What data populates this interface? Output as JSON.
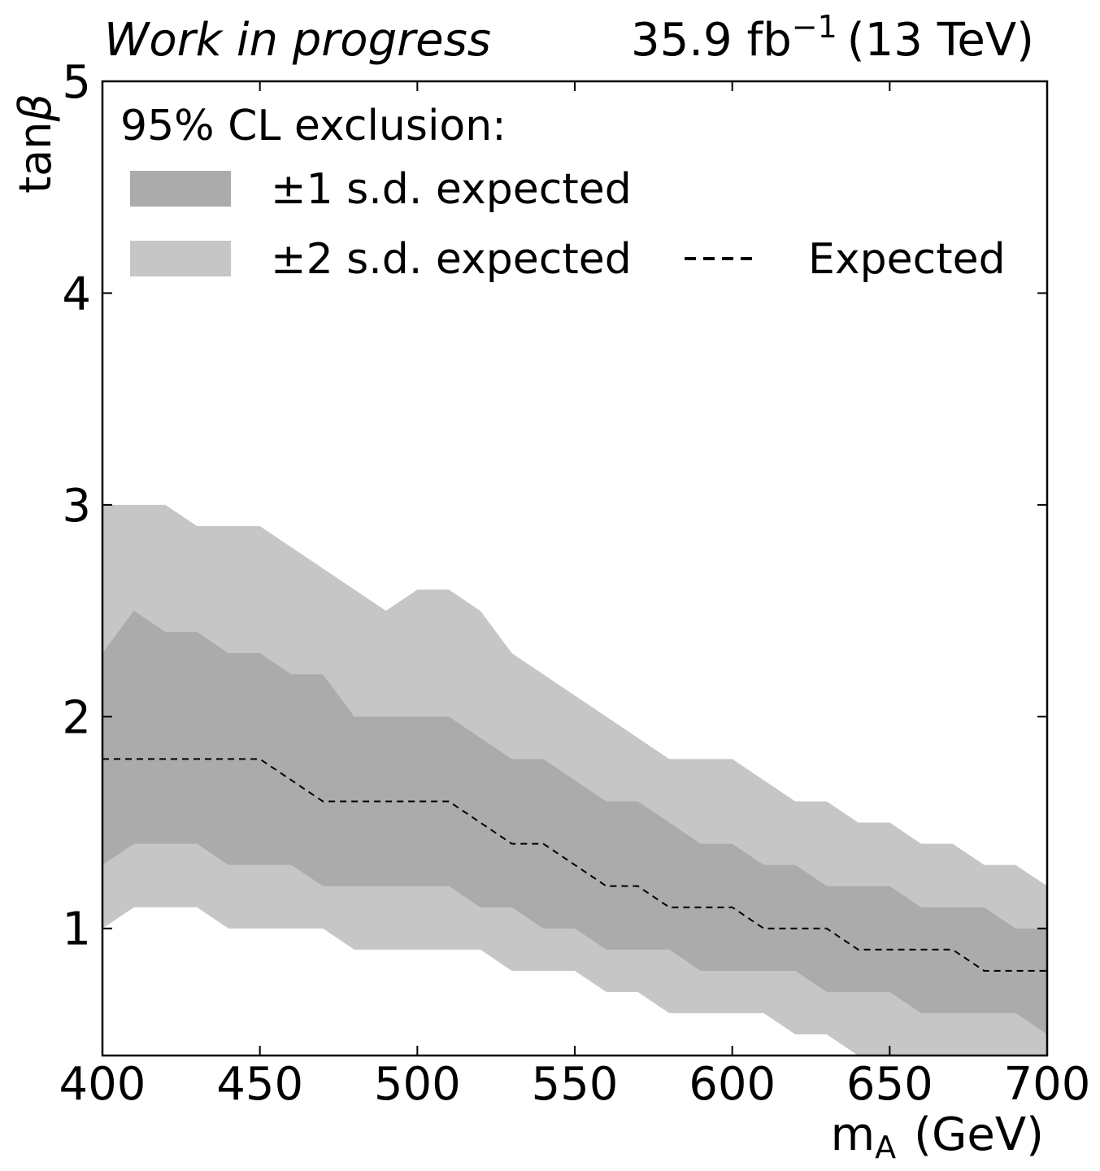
{
  "header": {
    "left": "Work in progress",
    "lumi": "35.9 fb",
    "lumi_exp": "−1",
    "energy": "(13 TeV)"
  },
  "legend": {
    "title": "95% CL exclusion:",
    "band1": "±1 s.d. expected",
    "band2": "±2 s.d. expected",
    "expected": "Expected"
  },
  "colors": {
    "band1": "#ababab",
    "band2": "#c6c6c6",
    "line": "#000000"
  },
  "chart_data": {
    "type": "area",
    "xlabel_main": "m",
    "xlabel_sub": "A",
    "xlabel_unit": "(GeV)",
    "ylabel_main": "tan",
    "ylabel_symbol": "β",
    "xlim": [
      400,
      700
    ],
    "ylim": [
      0.4,
      5
    ],
    "xticks": [
      "400",
      "450",
      "500",
      "550",
      "600",
      "650",
      "700"
    ],
    "yticks": [
      "1",
      "2",
      "3",
      "4",
      "5"
    ],
    "x": [
      400,
      410,
      420,
      430,
      440,
      450,
      460,
      470,
      480,
      490,
      500,
      510,
      520,
      530,
      540,
      550,
      560,
      570,
      580,
      590,
      600,
      610,
      620,
      630,
      640,
      650,
      660,
      670,
      680,
      690,
      700
    ],
    "expected": [
      1.8,
      1.8,
      1.8,
      1.8,
      1.8,
      1.8,
      1.7,
      1.6,
      1.6,
      1.6,
      1.6,
      1.6,
      1.5,
      1.4,
      1.4,
      1.3,
      1.2,
      1.2,
      1.1,
      1.1,
      1.1,
      1.0,
      1.0,
      1.0,
      0.9,
      0.9,
      0.9,
      0.9,
      0.8,
      0.8,
      0.8
    ],
    "band_1sd": {
      "upper": [
        2.3,
        2.5,
        2.4,
        2.4,
        2.3,
        2.3,
        2.2,
        2.2,
        2.0,
        2.0,
        2.0,
        2.0,
        1.9,
        1.8,
        1.8,
        1.7,
        1.6,
        1.6,
        1.5,
        1.4,
        1.4,
        1.3,
        1.3,
        1.2,
        1.2,
        1.2,
        1.1,
        1.1,
        1.1,
        1.0,
        1.0
      ],
      "lower": [
        1.3,
        1.4,
        1.4,
        1.4,
        1.3,
        1.3,
        1.3,
        1.2,
        1.2,
        1.2,
        1.2,
        1.2,
        1.1,
        1.1,
        1.0,
        1.0,
        0.9,
        0.9,
        0.9,
        0.8,
        0.8,
        0.8,
        0.8,
        0.7,
        0.7,
        0.7,
        0.6,
        0.6,
        0.6,
        0.6,
        0.5
      ]
    },
    "band_2sd": {
      "upper": [
        3.0,
        3.0,
        3.0,
        2.9,
        2.9,
        2.9,
        2.8,
        2.7,
        2.6,
        2.5,
        2.6,
        2.6,
        2.5,
        2.3,
        2.2,
        2.1,
        2.0,
        1.9,
        1.8,
        1.8,
        1.8,
        1.7,
        1.6,
        1.6,
        1.5,
        1.5,
        1.4,
        1.4,
        1.3,
        1.3,
        1.2
      ],
      "lower": [
        1.0,
        1.1,
        1.1,
        1.1,
        1.0,
        1.0,
        1.0,
        1.0,
        0.9,
        0.9,
        0.9,
        0.9,
        0.9,
        0.8,
        0.8,
        0.8,
        0.7,
        0.7,
        0.6,
        0.6,
        0.6,
        0.6,
        0.5,
        0.5,
        0.4,
        0.3,
        0.3,
        0.3,
        0.3,
        0.3,
        0.3
      ]
    },
    "grid": false,
    "legend_position": "top-left"
  }
}
